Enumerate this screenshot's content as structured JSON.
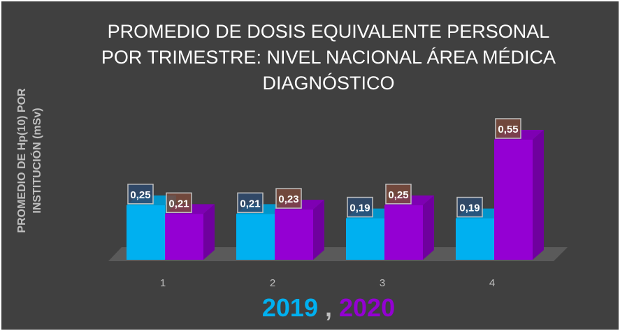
{
  "chart_data": {
    "type": "bar",
    "title_lines": [
      "PROMEDIO DE DOSIS EQUIVALENTE PERSONAL",
      "POR TRIMESTRE: NIVEL NACIONAL ÁREA MÉDICA",
      "DIAGNÓSTICO"
    ],
    "ylabel_lines": [
      "PROMEDIO DE Hp(10) POR",
      "INSTITUCIÓN (mSv)"
    ],
    "xlabel": "",
    "categories": [
      "1",
      "2",
      "3",
      "4"
    ],
    "series": [
      {
        "name": "2019",
        "values": [
          0.25,
          0.21,
          0.19,
          0.19
        ],
        "labels": [
          "0,25",
          "0,21",
          "0,19",
          "0,19"
        ],
        "color": "#00b0f0",
        "label_bg": "#2e4a6e"
      },
      {
        "name": "2020",
        "values": [
          0.21,
          0.23,
          0.25,
          0.55
        ],
        "labels": [
          "0,21",
          "0,23",
          "0,25",
          "0,55"
        ],
        "color": "#9400d3",
        "label_bg": "#7a4a3c"
      }
    ],
    "legend": {
      "separator": ",",
      "placement": "bottom"
    },
    "ylim": [
      0,
      0.55
    ],
    "grid": false,
    "style": "3d-column",
    "background": "#404040"
  }
}
